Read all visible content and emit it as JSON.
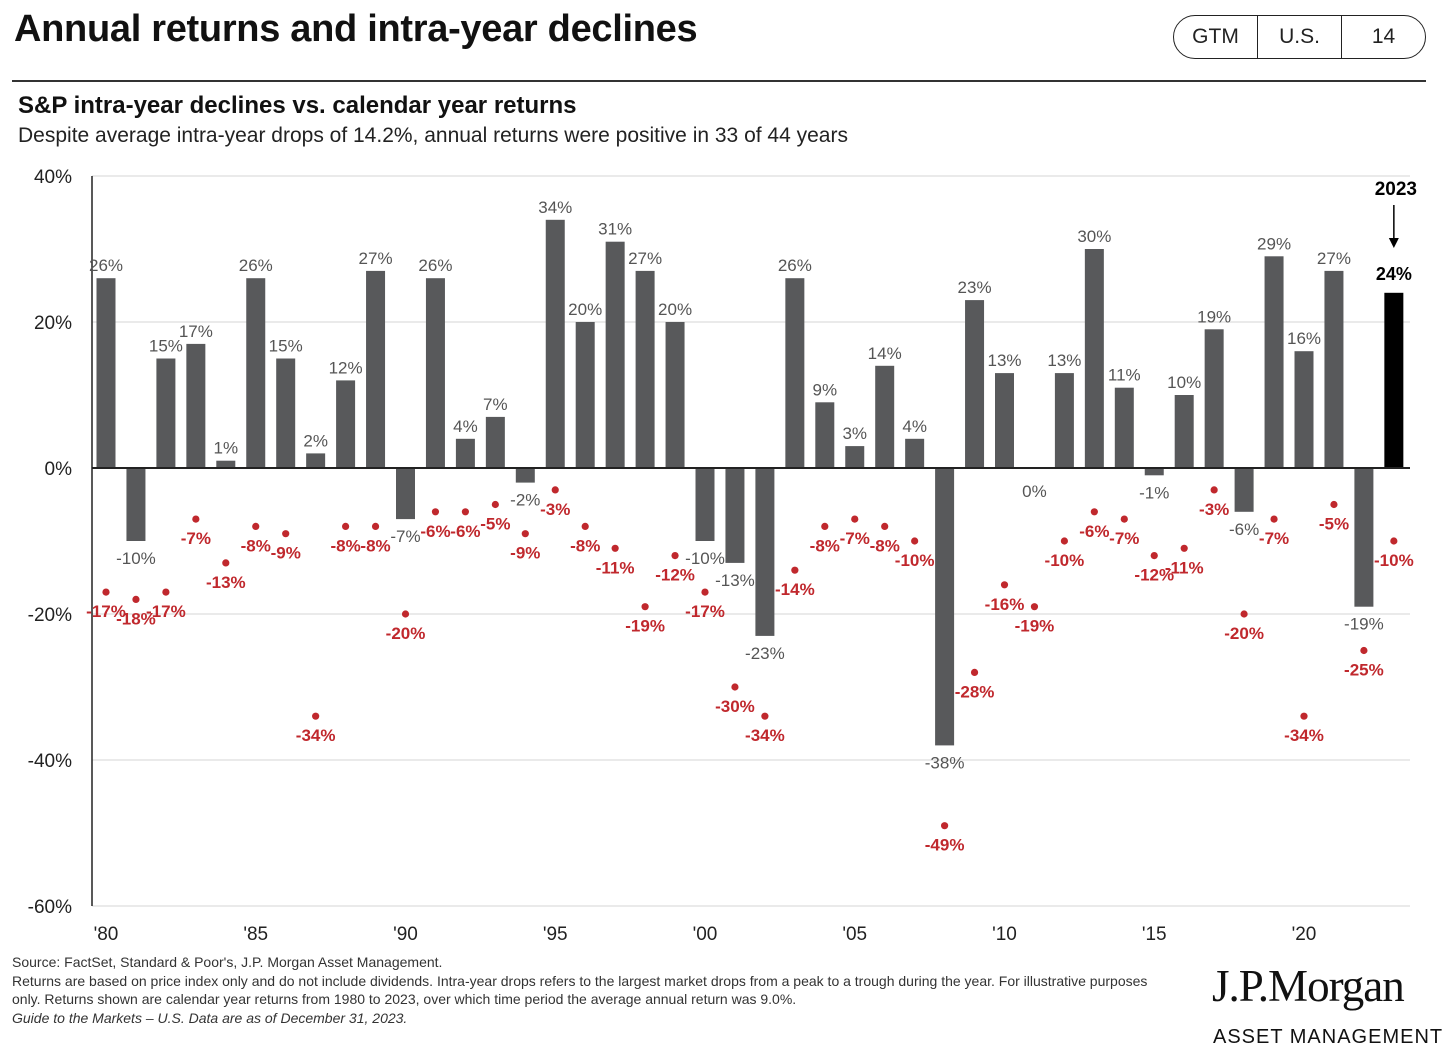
{
  "header": {
    "title": "Annual returns and intra-year declines",
    "tabs": [
      "GTM",
      "U.S.",
      "14"
    ]
  },
  "chart": {
    "title": "S&P intra-year declines vs. calendar year returns",
    "subtitle": "Despite average intra-year drops of 14.2%, annual returns were positive in 33 of 44 years"
  },
  "chart_data": {
    "type": "bar",
    "ylim": [
      -60,
      40
    ],
    "yticks": [
      40,
      20,
      0,
      -20,
      -40,
      -60
    ],
    "ytick_labels": [
      "40%",
      "20%",
      "0%",
      "-20%",
      "-40%",
      "-60%"
    ],
    "xtick_years": [
      1980,
      1985,
      1990,
      1995,
      2000,
      2005,
      2010,
      2015,
      2020
    ],
    "xtick_labels": [
      "'80",
      "'85",
      "'90",
      "'95",
      "'00",
      "'05",
      "'10",
      "'15",
      "'20"
    ],
    "categories": [
      1980,
      1981,
      1982,
      1983,
      1984,
      1985,
      1986,
      1987,
      1988,
      1989,
      1990,
      1991,
      1992,
      1993,
      1994,
      1995,
      1996,
      1997,
      1998,
      1999,
      2000,
      2001,
      2002,
      2003,
      2004,
      2005,
      2006,
      2007,
      2008,
      2009,
      2010,
      2011,
      2012,
      2013,
      2014,
      2015,
      2016,
      2017,
      2018,
      2019,
      2020,
      2021,
      2022,
      2023
    ],
    "grid": true,
    "series": [
      {
        "type": "bar",
        "color": "#58595b",
        "values": [
          26,
          -10,
          15,
          17,
          1,
          26,
          15,
          2,
          12,
          27,
          -7,
          26,
          4,
          7,
          -2,
          34,
          20,
          31,
          27,
          20,
          -10,
          -13,
          -23,
          26,
          9,
          3,
          14,
          4,
          -38,
          23,
          13,
          0,
          13,
          30,
          11,
          -1,
          10,
          19,
          -6,
          29,
          16,
          27,
          -19,
          24
        ],
        "labels": [
          "26%",
          "-10%",
          "15%",
          "17%",
          "1%",
          "26%",
          "15%",
          "2%",
          "12%",
          "27%",
          "-7%",
          "26%",
          "4%",
          "7%",
          "-2%",
          "34%",
          "20%",
          "31%",
          "27%",
          "20%",
          "-10%",
          "-13%",
          "-23%",
          "26%",
          "9%",
          "3%",
          "14%",
          "4%",
          "-38%",
          "23%",
          "13%",
          "0%",
          "13%",
          "30%",
          "11%",
          "-1%",
          "10%",
          "19%",
          "-6%",
          "29%",
          "16%",
          "27%",
          "-19%",
          "24%"
        ]
      },
      {
        "type": "scatter",
        "color": "#c0282d",
        "values": [
          -17,
          -18,
          -17,
          -7,
          -13,
          -8,
          -9,
          -34,
          -8,
          -8,
          -20,
          -6,
          -6,
          -5,
          -9,
          -3,
          -8,
          -11,
          -19,
          -12,
          -17,
          -30,
          -34,
          -14,
          -8,
          -7,
          -8,
          -10,
          -49,
          -28,
          -16,
          -19,
          -10,
          -6,
          -7,
          -12,
          -11,
          -3,
          -20,
          -7,
          -34,
          -5,
          -25,
          -10
        ],
        "labels": [
          "-17%",
          "-18%",
          "-17%",
          "-7%",
          "-13%",
          "-8%",
          "-9%",
          "-34%",
          "-8%",
          "-8%",
          "-20%",
          "-6%",
          "-6%",
          "-5%",
          "-9%",
          "-3%",
          "-8%",
          "-11%",
          "-19%",
          "-12%",
          "-17%",
          "-30%",
          "-34%",
          "-14%",
          "-8%",
          "-7%",
          "-8%",
          "-10%",
          "-49%",
          "-28%",
          "-16%",
          "-19%",
          "-10%",
          "-6%",
          "-7%",
          "-12%",
          "-11%",
          "-3%",
          "-20%",
          "-7%",
          "-34%",
          "-5%",
          "-25%",
          "-10%"
        ]
      }
    ],
    "highlight": {
      "year": 2023,
      "label": "2023",
      "color": "#000000"
    }
  },
  "footnotes": {
    "source": "Source: FactSet, Standard & Poor's, J.P. Morgan Asset Management.",
    "note": "Returns are based on price index only and do not include dividends. Intra-year drops refers to the largest market drops from a peak to a trough during the year. For illustrative purposes only. Returns shown are calendar year returns from 1980 to 2023, over which time period the average annual return was 9.0%.",
    "guide": "Guide to the Markets – U.S. Data are as of December 31, 2023."
  },
  "logo": {
    "name": "J.P.Morgan",
    "sub": "ASSET MANAGEMENT"
  }
}
